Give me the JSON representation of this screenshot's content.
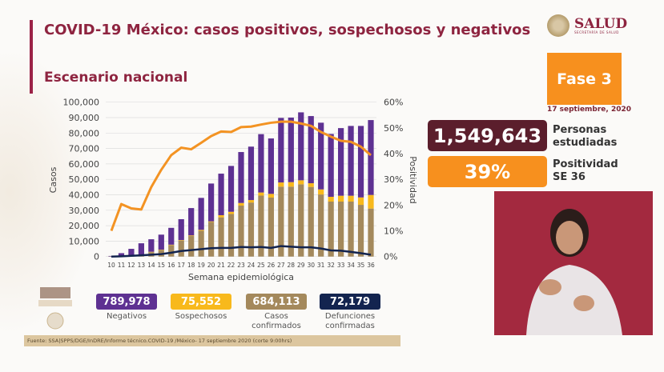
{
  "header": {
    "title": "COVID-19 México: casos positivos, sospechosos y negativos",
    "subtitle": "Escenario nacional"
  },
  "logo": {
    "text": "SALUD",
    "subtext": "SECRETARÍA DE SALUD"
  },
  "phase": {
    "label": "Fase 3",
    "date": "17 septiembre, 2020",
    "color": "#f7901e"
  },
  "stats": [
    {
      "value": "1,549,643",
      "label_line1": "Personas",
      "label_line2": "estudiadas",
      "color": "#5b1e2c"
    },
    {
      "value": "39%",
      "label_line1": "Positividad",
      "label_line2": "SE 36",
      "color": "#f7901e"
    }
  ],
  "totals": [
    {
      "value": "789,978",
      "label_line1": "Negativos",
      "label_line2": "",
      "color": "#5e3192"
    },
    {
      "value": "75,552",
      "label_line1": "Sospechosos",
      "label_line2": "",
      "color": "#f8b91c"
    },
    {
      "value": "684,113",
      "label_line1": "Casos",
      "label_line2": "confirmados",
      "color": "#a4895c"
    },
    {
      "value": "72,179",
      "label_line1": "Defunciones",
      "label_line2": "confirmadas",
      "color": "#13244f"
    }
  ],
  "source": "Fuente: SSA|SPPS/DGE/InDRE/Informe técnico.COVID-19 /México- 17 septiembre 2020 (corte 9:00hrs)",
  "chart_data": {
    "type": "bar",
    "stacked": true,
    "xlabel": "Semana epidemiológica",
    "ylabel": "Casos",
    "y2label": "Positividad",
    "ylim": [
      0,
      100000
    ],
    "y2lim": [
      0,
      60
    ],
    "yticks": [
      "0",
      "10,000",
      "20,000",
      "30,000",
      "40,000",
      "50,000",
      "60,000",
      "70,000",
      "80,000",
      "90,000",
      "100,000"
    ],
    "y2ticks": [
      "0%",
      "10%",
      "20%",
      "30%",
      "40%",
      "50%",
      "60%"
    ],
    "grid": true,
    "categories": [
      "10",
      "11",
      "12",
      "13",
      "14",
      "15",
      "16",
      "17",
      "18",
      "19",
      "20",
      "21",
      "22",
      "23",
      "24",
      "25",
      "26",
      "27",
      "28",
      "29",
      "30",
      "31",
      "32",
      "33",
      "34",
      "35",
      "36"
    ],
    "series": [
      {
        "key": "confirmados",
        "color": "#a4895c",
        "values": [
          100,
          400,
          700,
          1200,
          2900,
          4300,
          7400,
          10400,
          13300,
          16700,
          22400,
          25400,
          27600,
          33000,
          35000,
          39500,
          38200,
          45300,
          45300,
          46800,
          45100,
          40200,
          35600,
          35600,
          35600,
          33500,
          31100
        ]
      },
      {
        "key": "sospechosos",
        "color": "#f8b91c",
        "values": [
          0,
          50,
          100,
          150,
          200,
          200,
          300,
          300,
          400,
          600,
          400,
          1400,
          1400,
          1700,
          1600,
          2000,
          2400,
          2700,
          2900,
          2600,
          2400,
          3300,
          3100,
          3800,
          3800,
          4800,
          8800
        ]
      },
      {
        "key": "negativos",
        "color": "#5e3192",
        "values": [
          300,
          1750,
          4200,
          7250,
          8100,
          9700,
          10900,
          13500,
          17700,
          20700,
          24500,
          26900,
          29700,
          33000,
          34600,
          37800,
          35900,
          41800,
          41800,
          44000,
          43500,
          43200,
          40700,
          43800,
          45200,
          46300,
          48500
        ]
      },
      {
        "key": "defunciones",
        "type": "line",
        "color": "#13244f",
        "values": [
          0,
          200,
          500,
          800,
          1200,
          1600,
          2500,
          3600,
          4200,
          4800,
          5400,
          5600,
          5600,
          6200,
          6000,
          6200,
          5600,
          6800,
          6400,
          6000,
          6000,
          5200,
          4000,
          3800,
          3000,
          2200,
          1200
        ]
      },
      {
        "key": "positividad",
        "type": "line",
        "axis": "right",
        "color": "#f39323",
        "values": [
          10,
          20.4,
          18.7,
          18.3,
          27,
          33.7,
          39.4,
          42.3,
          41.7,
          44.2,
          46.8,
          48.6,
          48.4,
          50.3,
          50.5,
          51.3,
          52,
          52.4,
          52.4,
          51.7,
          50.8,
          48.4,
          46.6,
          45,
          44.6,
          42.7,
          39.4
        ]
      }
    ]
  }
}
